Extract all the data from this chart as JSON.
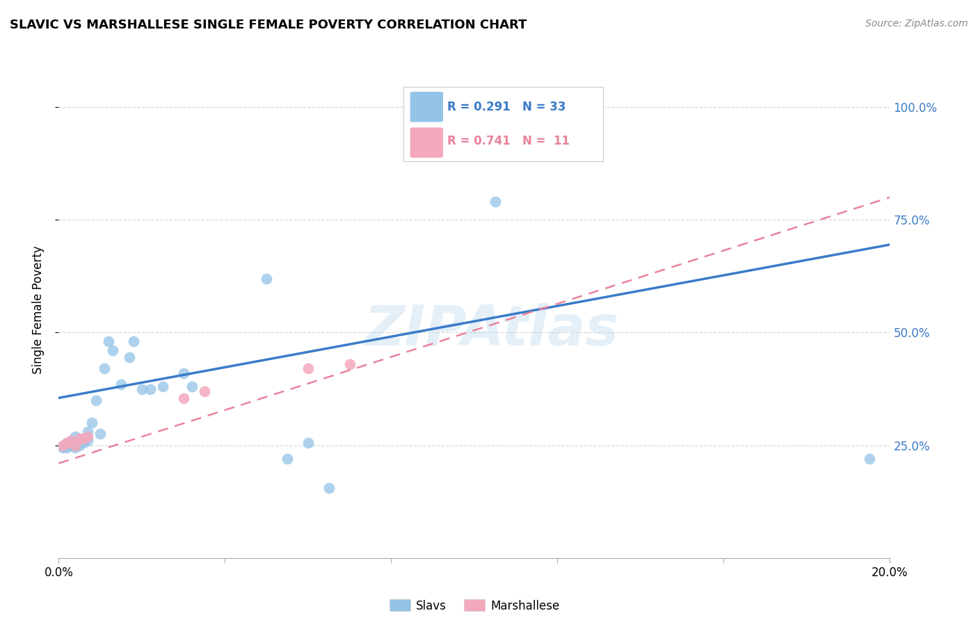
{
  "title": "SLAVIC VS MARSHALLESE SINGLE FEMALE POVERTY CORRELATION CHART",
  "source": "Source: ZipAtlas.com",
  "ylabel_label": "Single Female Poverty",
  "xlim": [
    0.0,
    0.2
  ],
  "ylim": [
    0.0,
    1.1
  ],
  "background_color": "#ffffff",
  "slavs_color": "#93c4e8",
  "marshallese_color": "#f4a8bc",
  "slavs_line_color": "#3a7bc8",
  "marshallese_line_color": "#e8829a",
  "grid_color": "#d8d8d8",
  "R_slavs": 0.291,
  "N_slavs": 33,
  "R_marshallese": 0.741,
  "N_marshallese": 11,
  "slavs_x": [
    0.001,
    0.002,
    0.002,
    0.003,
    0.003,
    0.004,
    0.004,
    0.005,
    0.005,
    0.006,
    0.006,
    0.007,
    0.007,
    0.008,
    0.009,
    0.01,
    0.011,
    0.012,
    0.013,
    0.015,
    0.017,
    0.018,
    0.02,
    0.022,
    0.025,
    0.03,
    0.032,
    0.05,
    0.055,
    0.06,
    0.105,
    0.195,
    0.065
  ],
  "slavs_y": [
    0.245,
    0.245,
    0.255,
    0.25,
    0.26,
    0.245,
    0.27,
    0.25,
    0.265,
    0.255,
    0.265,
    0.26,
    0.28,
    0.3,
    0.35,
    0.275,
    0.42,
    0.48,
    0.46,
    0.385,
    0.445,
    0.48,
    0.375,
    0.375,
    0.38,
    0.41,
    0.38,
    0.62,
    0.22,
    0.255,
    0.79,
    0.22,
    0.155
  ],
  "marshallese_x": [
    0.001,
    0.002,
    0.003,
    0.004,
    0.005,
    0.006,
    0.007,
    0.03,
    0.035,
    0.06,
    0.07
  ],
  "marshallese_y": [
    0.25,
    0.255,
    0.26,
    0.25,
    0.265,
    0.265,
    0.27,
    0.355,
    0.37,
    0.42,
    0.43
  ],
  "slavs_line_x": [
    0.0,
    0.2
  ],
  "slavs_line_y": [
    0.355,
    0.695
  ],
  "marsh_line_x": [
    0.0,
    0.2
  ],
  "marsh_line_y": [
    0.21,
    0.8
  ]
}
